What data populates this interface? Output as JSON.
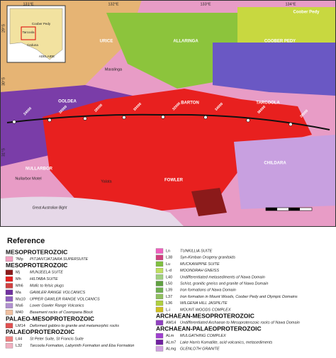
{
  "map": {
    "lon_labels": [
      "131°E",
      "132°E",
      "133°E",
      "134°E"
    ],
    "lat_labels": [
      "29°S",
      "30°S",
      "31°S"
    ],
    "region_labels": [
      "URICE",
      "ALLARINGA",
      "COOBER PEDY",
      "OOLDEA",
      "BARTON",
      "TARCOOLA",
      "NULLARBOR",
      "FOWLER",
      "CHILDARA"
    ],
    "place_labels": [
      "Maralinga",
      "Nullarbor Motel",
      "Yalata",
      "Coober Pedy"
    ],
    "inset_labels": [
      "Coober Pedy",
      "Tarcoola",
      "Ceduna",
      "ADELAIDE"
    ],
    "profile_labels": [
      "24000",
      "26000",
      "28000",
      "30000",
      "32000",
      "34000",
      "36000",
      "38000"
    ],
    "sea_label": "Great Australian Bight"
  },
  "legend": {
    "title": "Reference",
    "left": [
      {
        "heading": "MESOPROTEROZOIC"
      },
      {
        "code": "?Mp",
        "text": "PITJANTJATJARA SUPERSUITE"
      },
      {
        "heading": "MESOPROTEROZOIC"
      },
      {
        "code": "Mj",
        "text": "MUNJEELA SUITE"
      },
      {
        "code": "Mh",
        "text": "HILTABA SUITE"
      },
      {
        "code": "Mh6",
        "text": "Mafic to felsic plugs"
      },
      {
        "code": "Ma",
        "text": "GAWLER RANGE VOLCANICS"
      },
      {
        "code": "Ma10",
        "text": "UPPER GAWLER RANGE VOLCANICS"
      },
      {
        "code": "Ma6",
        "text": "Lower Gawler Range Volcanics"
      },
      {
        "code": "M40",
        "text": "Basement rocks of Coompana Block"
      },
      {
        "heading": "PALAEO-MESOPROTEROZOIC"
      },
      {
        "code": "LM14",
        "text": "Deformed gabbro to granite and metamorphic rocks"
      },
      {
        "heading": "PALAEOPROTEROZOIC"
      },
      {
        "code": "L44",
        "text": "St Peter Suite, St Francis Suite"
      },
      {
        "code": "L32",
        "text": "Tarcoola Formation, Labyrinth Formation and Eba Formation"
      }
    ],
    "right": [
      {
        "code": "Ln",
        "text": "TUNKILLIA SUITE"
      },
      {
        "code": "L38",
        "text": "Syn-Kimban Orogeny granitoids"
      },
      {
        "code": "Lu",
        "text": "MUCKANIPPIE SUITE"
      },
      {
        "code": "L-d",
        "text": "MOONDRAH GNEISS"
      },
      {
        "code": "L40",
        "text": "Undifferentiated metasediments of Nawa Domain"
      },
      {
        "code": "L50",
        "text": "Schist, granitic gneiss and granite of Nawa Domain"
      },
      {
        "code": "L39",
        "text": "Iron formations of Nawa Domain"
      },
      {
        "code": "L37",
        "text": "Iron formation in Mount Woods, Coober Pedy and Olympic Domains"
      },
      {
        "code": "L36",
        "text": "WILGENA HILL JASPILITE"
      },
      {
        "code": "L-i",
        "text": "MOUNT WOODS COMPLEX"
      },
      {
        "heading": "ARCHAEAN-MESOPROTEROZOIC"
      },
      {
        "code": "AM14",
        "text": "Undifferentiated Archaean to Mesoproterozoic rocks of Nawa Domain"
      },
      {
        "heading": "ARCHAEAN-PALAEOPROTEROZOIC"
      },
      {
        "code": "ALm",
        "text": "MULGATHING COMPLEX"
      },
      {
        "code": "ALm7",
        "text": "Lake Harris Komatiite, acid volcanics, metasediments"
      },
      {
        "code": "ALmg",
        "text": "GLENLOTH GRANITE"
      }
    ]
  }
}
